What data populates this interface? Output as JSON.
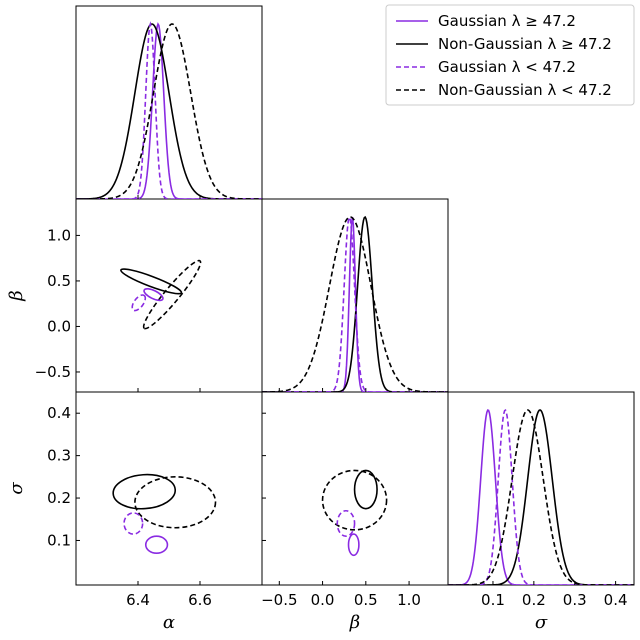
{
  "chart_data": {
    "type": "corner",
    "parameters": [
      "α",
      "β",
      "σ"
    ],
    "legend": {
      "placement": "top-right",
      "entries": [
        {
          "label": "Gaussian λ  ≥  47.2",
          "series": "g_hi"
        },
        {
          "label": "Non-Gaussian λ  ≥  47.2",
          "series": "ng_hi"
        },
        {
          "label": "Gaussian λ < 47.2",
          "series": "g_lo"
        },
        {
          "label": "Non-Gaussian λ < 47.2",
          "series": "ng_lo"
        }
      ]
    },
    "series_styles": {
      "g_hi": {
        "color": "#8a2be2",
        "dashed": false
      },
      "ng_hi": {
        "color": "#000000",
        "dashed": false
      },
      "g_lo": {
        "color": "#8a2be2",
        "dashed": true
      },
      "ng_lo": {
        "color": "#000000",
        "dashed": true
      }
    },
    "axes": {
      "alpha": {
        "range": [
          6.2,
          6.8
        ],
        "ticks": [
          6.4,
          6.6
        ],
        "tick_labels": [
          "6.4",
          "6.6"
        ],
        "label": "α"
      },
      "beta": {
        "range": [
          -0.7,
          1.45
        ],
        "ticks": [
          -0.5,
          0.0,
          0.5,
          1.0
        ],
        "tick_labels": [
          "−0.5",
          "0.0",
          "0.5",
          "1.0"
        ],
        "label": "β"
      },
      "sigma": {
        "range": [
          -0.01,
          0.445
        ],
        "ticks": [
          0.1,
          0.2,
          0.3,
          0.4
        ],
        "tick_labels": [
          "0.1",
          "0.2",
          "0.3",
          "0.4"
        ],
        "label": "σ"
      },
      "beta_y": {
        "range": [
          -0.72,
          1.4
        ],
        "ticks": [
          -0.5,
          0.0,
          0.5,
          1.0
        ],
        "tick_labels": [
          "−0.5",
          "0.0",
          "0.5",
          "1.0"
        ]
      },
      "sigma_y": {
        "range": [
          -0.005,
          0.45
        ],
        "ticks": [
          0.1,
          0.2,
          0.3,
          0.4
        ],
        "tick_labels": [
          "0.1",
          "0.2",
          "0.3",
          "0.4"
        ]
      }
    },
    "marginals": {
      "alpha": [
        {
          "series": "g_hi",
          "mean": 6.465,
          "sd": 0.018
        },
        {
          "series": "ng_hi",
          "mean": 6.445,
          "sd": 0.055
        },
        {
          "series": "g_lo",
          "mean": 6.44,
          "sd": 0.015
        },
        {
          "series": "ng_lo",
          "mean": 6.51,
          "sd": 0.06
        }
      ],
      "beta": [
        {
          "series": "g_hi",
          "mean": 0.345,
          "sd": 0.035
        },
        {
          "series": "ng_hi",
          "mean": 0.49,
          "sd": 0.085
        },
        {
          "series": "g_lo",
          "mean": 0.31,
          "sd": 0.06
        },
        {
          "series": "ng_lo",
          "mean": 0.32,
          "sd": 0.24
        }
      ],
      "sigma": [
        {
          "series": "g_hi",
          "mean": 0.088,
          "sd": 0.018
        },
        {
          "series": "ng_hi",
          "mean": 0.215,
          "sd": 0.03
        },
        {
          "series": "g_lo",
          "mean": 0.13,
          "sd": 0.017
        },
        {
          "series": "ng_lo",
          "mean": 0.185,
          "sd": 0.038
        }
      ]
    },
    "contours": {
      "alpha_beta": [
        {
          "series": "ng_hi",
          "center": [
            6.44,
            0.495
          ],
          "points": [
            [
              6.345,
              0.62
            ],
            [
              6.54,
              0.37
            ]
          ],
          "half_width": 0.055
        },
        {
          "series": "ng_lo",
          "center": [
            6.51,
            0.35
          ],
          "points": [
            [
              6.6,
              0.72
            ],
            [
              6.42,
              -0.02
            ]
          ],
          "half_width": 0.08
        },
        {
          "series": "g_hi",
          "center": [
            6.45,
            0.34
          ],
          "points": [
            [
              6.48,
              0.3
            ],
            [
              6.42,
              0.4
            ]
          ],
          "half_width": 0.02
        },
        {
          "series": "g_lo",
          "center": [
            6.4,
            0.27
          ],
          "points": [
            [
              6.385,
              0.18
            ],
            [
              6.42,
              0.34
            ]
          ],
          "half_width": 0.05
        }
      ],
      "alpha_sigma": [
        {
          "series": "ng_hi",
          "center": [
            6.425,
            0.215
          ],
          "points": [
            [
              6.32,
              0.21
            ],
            [
              6.52,
              0.22
            ]
          ],
          "half_width": 0.04
        },
        {
          "series": "ng_lo",
          "center": [
            6.525,
            0.19
          ],
          "points": [
            [
              6.39,
              0.19
            ],
            [
              6.65,
              0.19
            ]
          ],
          "half_width": 0.06
        },
        {
          "series": "g_hi",
          "center": [
            6.46,
            0.09
          ],
          "points": [
            [
              6.425,
              0.09
            ],
            [
              6.495,
              0.09
            ]
          ],
          "half_width": 0.02
        },
        {
          "series": "g_lo",
          "center": [
            6.385,
            0.14
          ],
          "points": [
            [
              6.355,
              0.14
            ],
            [
              6.415,
              0.14
            ]
          ],
          "half_width": 0.025
        }
      ],
      "beta_sigma": [
        {
          "series": "ng_hi",
          "center": [
            0.5,
            0.22
          ],
          "points": [
            [
              0.37,
              0.22
            ],
            [
              0.63,
              0.22
            ]
          ],
          "half_width": 0.045
        },
        {
          "series": "ng_lo",
          "center": [
            0.34,
            0.195
          ],
          "points": [
            [
              0.0,
              0.195
            ],
            [
              0.74,
              0.195
            ]
          ],
          "half_width": 0.07
        },
        {
          "series": "g_hi",
          "center": [
            0.36,
            0.09
          ],
          "points": [
            [
              0.3,
              0.09
            ],
            [
              0.42,
              0.09
            ]
          ],
          "half_width": 0.025
        },
        {
          "series": "g_lo",
          "center": [
            0.27,
            0.14
          ],
          "points": [
            [
              0.17,
              0.14
            ],
            [
              0.37,
              0.14
            ]
          ],
          "half_width": 0.03
        }
      ]
    }
  }
}
